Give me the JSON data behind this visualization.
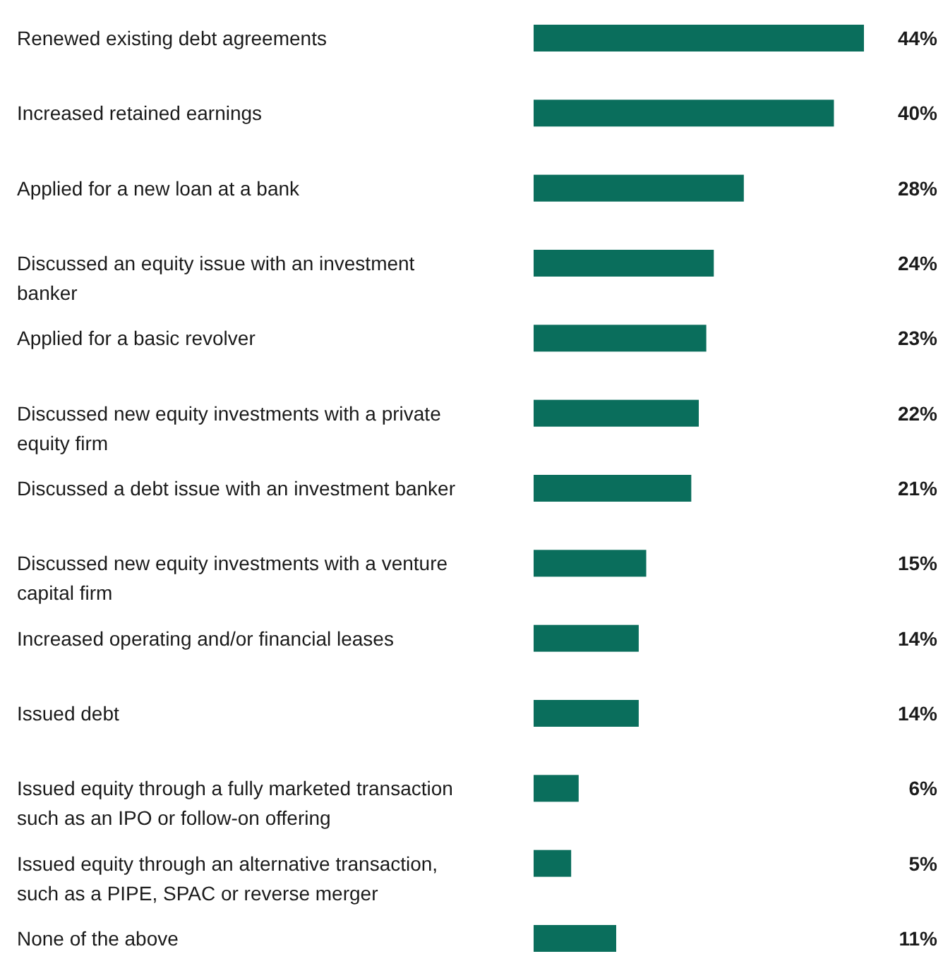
{
  "chart_data": {
    "type": "bar",
    "orientation": "horizontal",
    "categories": [
      "Renewed existing debt agreements",
      "Increased retained earnings",
      "Applied for a new loan at a bank",
      "Discussed an equity issue with an investment banker",
      "Applied for a basic revolver",
      "Discussed new equity investments with a private equity firm",
      "Discussed a debt issue with an investment banker",
      "Discussed new equity investments with a venture capital firm",
      "Increased operating and/or financial leases",
      "Issued debt",
      "Issued equity through a fully marketed transaction such as an IPO or follow-on offering",
      "Issued equity through an alternative transaction, such as a PIPE, SPAC or reverse merger",
      "None of the above"
    ],
    "values": [
      44,
      40,
      28,
      24,
      23,
      22,
      21,
      15,
      14,
      14,
      6,
      5,
      11
    ],
    "value_labels": [
      "44%",
      "40%",
      "28%",
      "24%",
      "23%",
      "22%",
      "21%",
      "15%",
      "14%",
      "14%",
      "6%",
      "5%",
      "11%"
    ],
    "color": "#0a6e5c"
  }
}
